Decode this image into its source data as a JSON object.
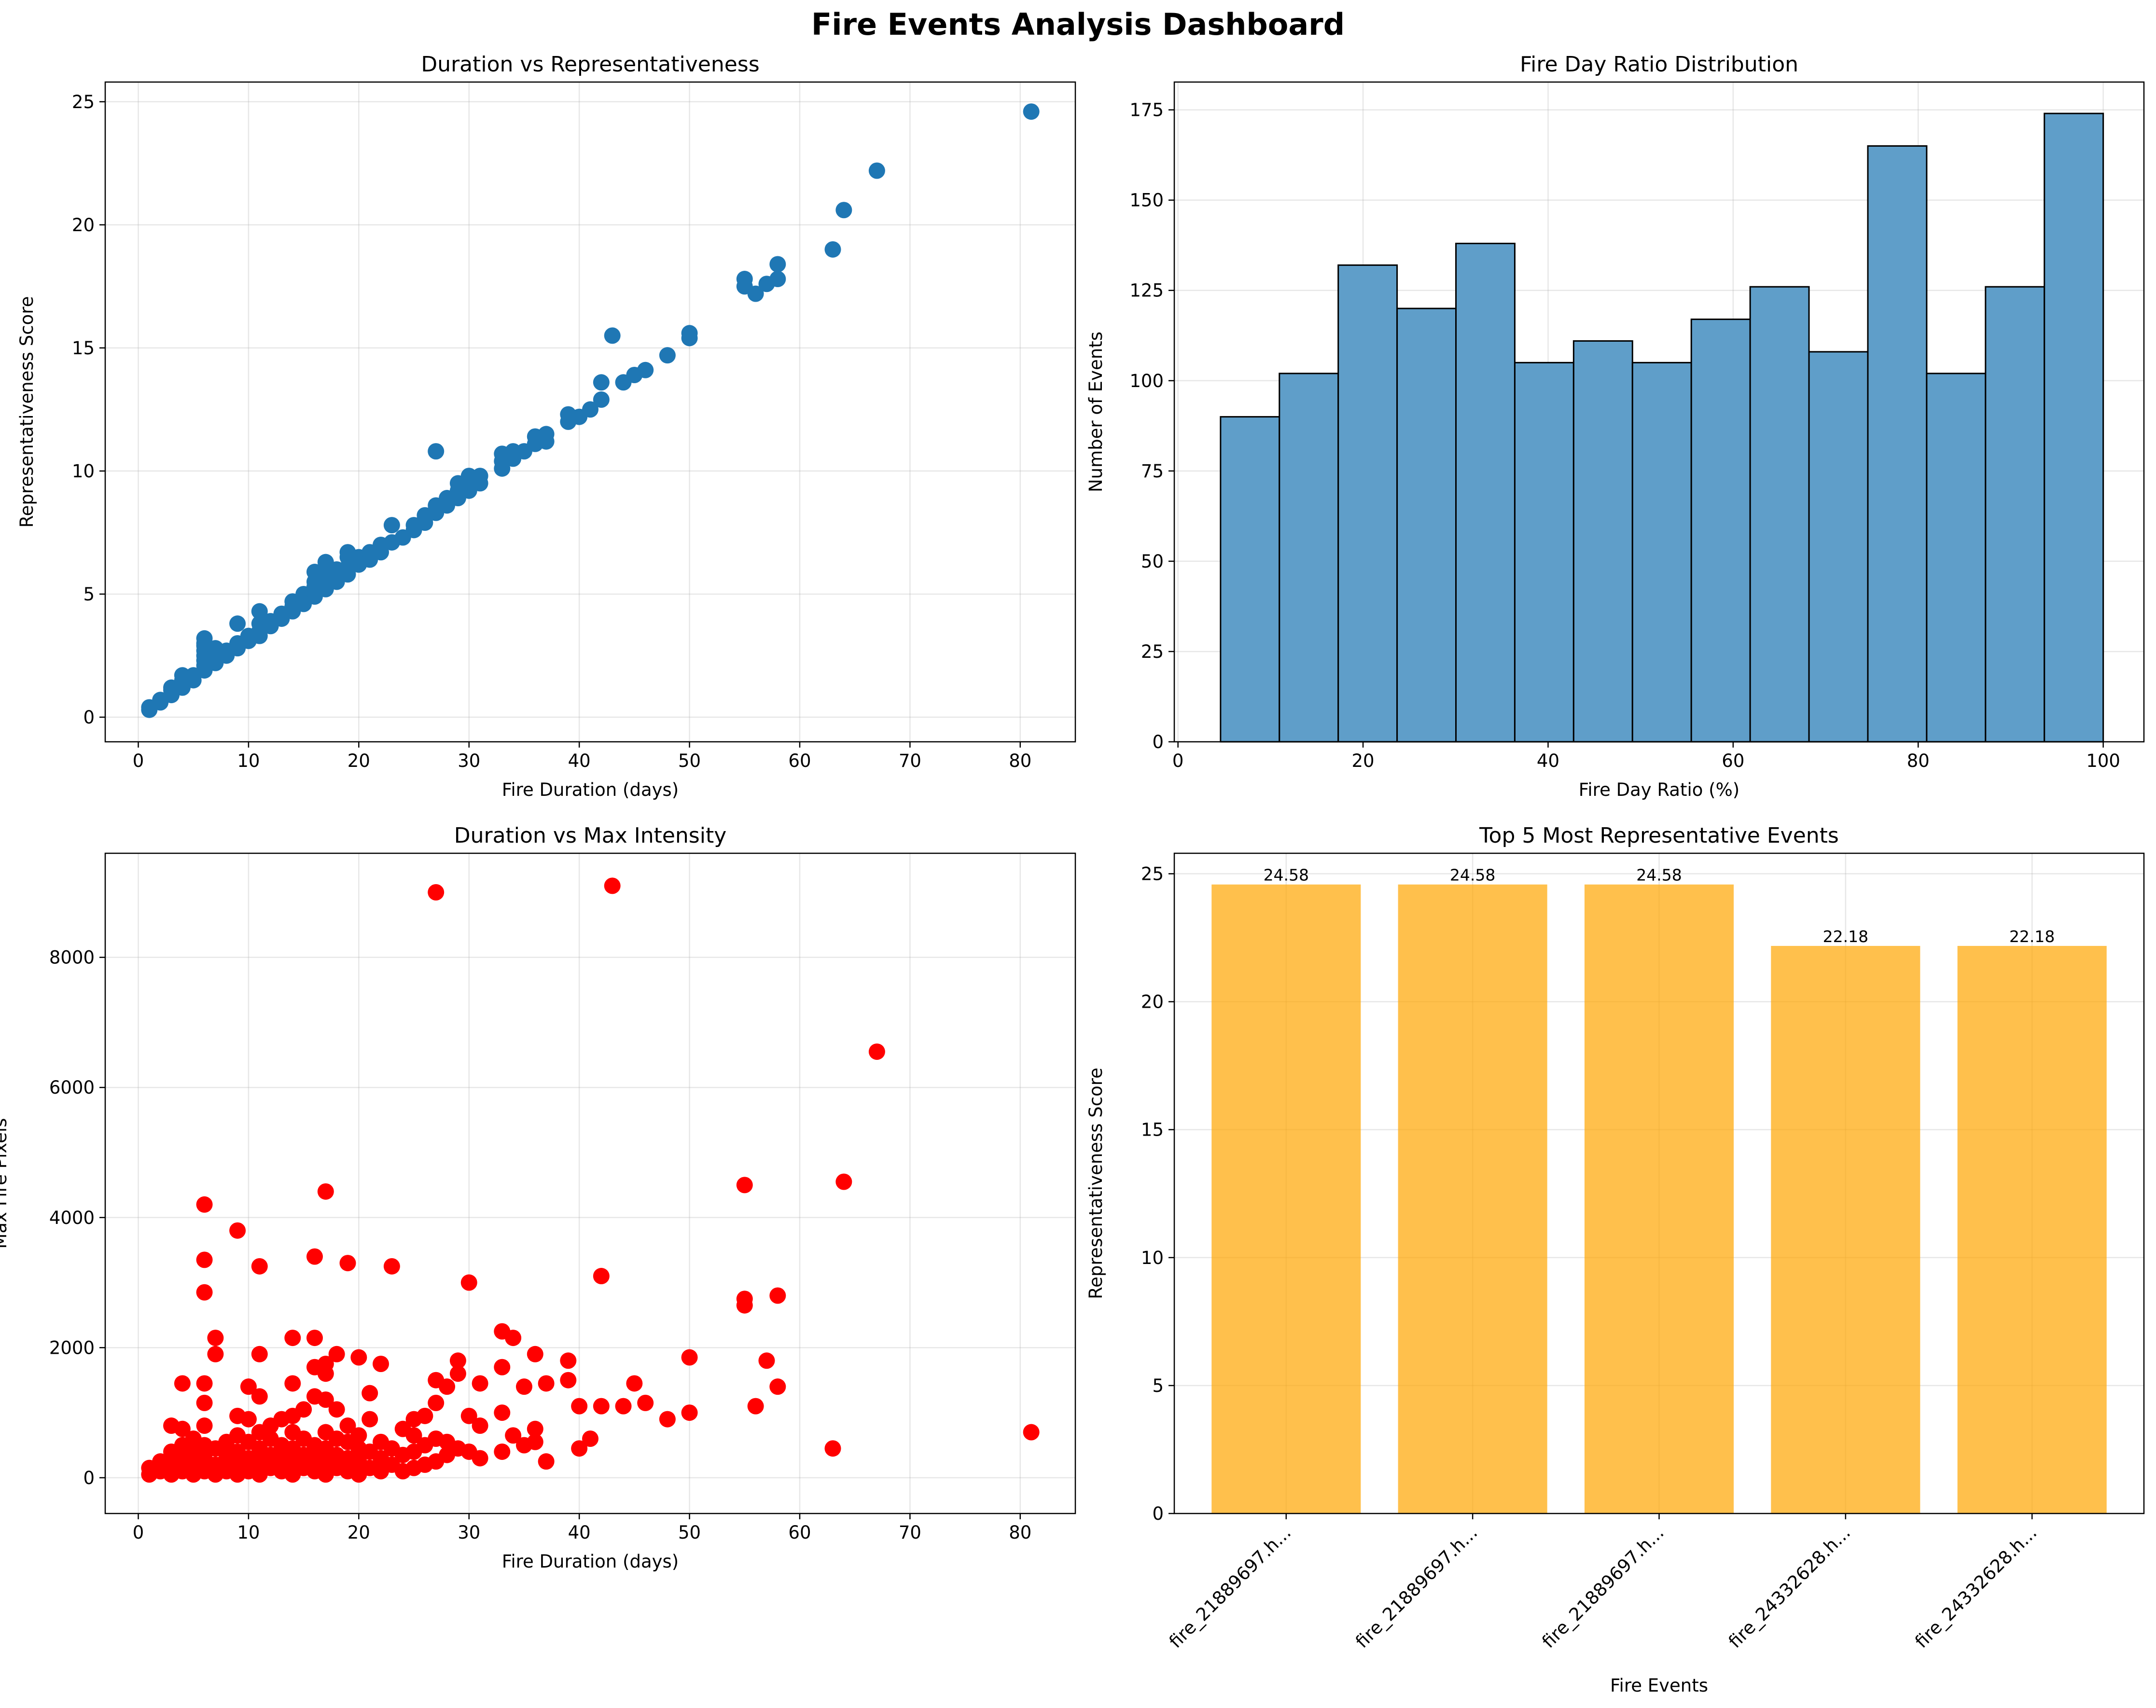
{
  "dashboard_title": "Fire Events Analysis Dashboard",
  "chart_data": [
    {
      "type": "scatter",
      "title": "Duration vs Representativeness",
      "xlabel": "Fire Duration (days)",
      "ylabel": "Representativeness Score",
      "xlim": [
        -3.0,
        85.0
      ],
      "ylim": [
        -1.0,
        25.8
      ],
      "xticks": [
        0,
        10,
        20,
        30,
        40,
        50,
        60,
        70,
        80
      ],
      "yticks": [
        0,
        5,
        10,
        15,
        20,
        25
      ],
      "grid": true,
      "color": "#1f77b4",
      "points": [
        [
          1,
          0.3
        ],
        [
          1,
          0.4
        ],
        [
          2,
          0.6
        ],
        [
          2,
          0.7
        ],
        [
          3,
          0.9
        ],
        [
          3,
          1.1
        ],
        [
          3,
          1.2
        ],
        [
          4,
          1.2
        ],
        [
          4,
          1.4
        ],
        [
          4,
          1.5
        ],
        [
          4,
          1.7
        ],
        [
          5,
          1.5
        ],
        [
          5,
          1.7
        ],
        [
          6,
          1.9
        ],
        [
          6,
          2.1
        ],
        [
          6,
          2.3
        ],
        [
          6,
          2.5
        ],
        [
          6,
          2.7
        ],
        [
          6,
          2.9
        ],
        [
          6,
          3.0
        ],
        [
          6,
          3.2
        ],
        [
          7,
          2.2
        ],
        [
          7,
          2.4
        ],
        [
          7,
          2.6
        ],
        [
          7,
          2.8
        ],
        [
          8,
          2.5
        ],
        [
          8,
          2.7
        ],
        [
          9,
          2.8
        ],
        [
          9,
          3.0
        ],
        [
          9,
          3.8
        ],
        [
          10,
          3.1
        ],
        [
          10,
          3.3
        ],
        [
          11,
          3.3
        ],
        [
          11,
          3.5
        ],
        [
          11,
          3.8
        ],
        [
          11,
          4.3
        ],
        [
          12,
          3.7
        ],
        [
          12,
          3.9
        ],
        [
          13,
          4.0
        ],
        [
          13,
          4.2
        ],
        [
          14,
          4.3
        ],
        [
          14,
          4.5
        ],
        [
          14,
          4.7
        ],
        [
          15,
          4.6
        ],
        [
          15,
          4.8
        ],
        [
          15,
          5.0
        ],
        [
          16,
          4.9
        ],
        [
          16,
          5.1
        ],
        [
          16,
          5.3
        ],
        [
          16,
          5.5
        ],
        [
          16,
          5.9
        ],
        [
          17,
          5.2
        ],
        [
          17,
          5.4
        ],
        [
          17,
          5.6
        ],
        [
          17,
          5.9
        ],
        [
          17,
          6.3
        ],
        [
          18,
          5.5
        ],
        [
          18,
          5.7
        ],
        [
          18,
          6.0
        ],
        [
          19,
          5.8
        ],
        [
          19,
          6.1
        ],
        [
          19,
          6.5
        ],
        [
          19,
          6.7
        ],
        [
          20,
          6.2
        ],
        [
          20,
          6.5
        ],
        [
          21,
          6.4
        ],
        [
          21,
          6.7
        ],
        [
          22,
          6.7
        ],
        [
          22,
          7.0
        ],
        [
          23,
          7.1
        ],
        [
          23,
          7.8
        ],
        [
          24,
          7.3
        ],
        [
          25,
          7.6
        ],
        [
          25,
          7.8
        ],
        [
          26,
          7.9
        ],
        [
          26,
          8.2
        ],
        [
          27,
          8.3
        ],
        [
          27,
          8.6
        ],
        [
          27,
          10.8
        ],
        [
          28,
          8.6
        ],
        [
          28,
          8.9
        ],
        [
          29,
          8.9
        ],
        [
          29,
          9.2
        ],
        [
          29,
          9.5
        ],
        [
          30,
          9.2
        ],
        [
          30,
          9.5
        ],
        [
          30,
          9.8
        ],
        [
          31,
          9.5
        ],
        [
          31,
          9.8
        ],
        [
          33,
          10.1
        ],
        [
          33,
          10.4
        ],
        [
          33,
          10.7
        ],
        [
          34,
          10.5
        ],
        [
          34,
          10.8
        ],
        [
          35,
          10.8
        ],
        [
          36,
          11.1
        ],
        [
          36,
          11.4
        ],
        [
          37,
          11.2
        ],
        [
          37,
          11.5
        ],
        [
          39,
          12.0
        ],
        [
          39,
          12.3
        ],
        [
          40,
          12.2
        ],
        [
          41,
          12.5
        ],
        [
          42,
          12.9
        ],
        [
          42,
          13.6
        ],
        [
          43,
          15.5
        ],
        [
          44,
          13.6
        ],
        [
          45,
          13.9
        ],
        [
          46,
          14.1
        ],
        [
          48,
          14.7
        ],
        [
          50,
          15.4
        ],
        [
          50,
          15.6
        ],
        [
          55,
          17.5
        ],
        [
          55,
          17.8
        ],
        [
          56,
          17.2
        ],
        [
          57,
          17.6
        ],
        [
          58,
          17.8
        ],
        [
          58,
          18.4
        ],
        [
          63,
          19.0
        ],
        [
          64,
          20.6
        ],
        [
          67,
          22.2
        ],
        [
          81,
          24.6
        ]
      ]
    },
    {
      "type": "bar",
      "title": "Fire Day Ratio Distribution",
      "xlabel": "Fire Day Ratio (%)",
      "ylabel": "Number of Events",
      "xlim": [
        -0.4,
        104.4
      ],
      "ylim": [
        0,
        182.7
      ],
      "xticks": [
        0,
        20,
        40,
        60,
        80,
        100
      ],
      "yticks": [
        0,
        25,
        50,
        75,
        100,
        125,
        150,
        175
      ],
      "grid": true,
      "color": "#5f9ec9",
      "bins": [
        4.6,
        10.96,
        17.32,
        23.68,
        30.04,
        36.4,
        42.76,
        49.12,
        55.48,
        61.84,
        68.2,
        74.56,
        80.92,
        87.28,
        93.64,
        100
      ],
      "counts": [
        90,
        102,
        132,
        120,
        138,
        105,
        111,
        105,
        117,
        126,
        108,
        165,
        102,
        126,
        174
      ]
    },
    {
      "type": "scatter",
      "title": "Duration vs Max Intensity",
      "xlabel": "Fire Duration (days)",
      "ylabel": "Max Fire Pixels",
      "xlim": [
        -3.0,
        85.0
      ],
      "ylim": [
        -550,
        9600
      ],
      "xticks": [
        0,
        10,
        20,
        30,
        40,
        50,
        60,
        70,
        80
      ],
      "yticks": [
        0,
        2000,
        4000,
        6000,
        8000
      ],
      "grid": true,
      "color": "#ff0000",
      "points": [
        [
          27,
          9000
        ],
        [
          43,
          9100
        ],
        [
          67,
          6550
        ],
        [
          17,
          4400
        ],
        [
          64,
          4550
        ],
        [
          55,
          4500
        ],
        [
          6,
          4200
        ],
        [
          9,
          3800
        ],
        [
          6,
          3350
        ],
        [
          11,
          3250
        ],
        [
          16,
          3400
        ],
        [
          19,
          3300
        ],
        [
          23,
          3250
        ],
        [
          6,
          2850
        ],
        [
          30,
          3000
        ],
        [
          42,
          3100
        ],
        [
          55,
          2750
        ],
        [
          55,
          2650
        ],
        [
          58,
          2800
        ],
        [
          33,
          2250
        ],
        [
          34,
          2150
        ],
        [
          7,
          2150
        ],
        [
          14,
          2150
        ],
        [
          16,
          2150
        ],
        [
          11,
          1900
        ],
        [
          18,
          1900
        ],
        [
          20,
          1850
        ],
        [
          36,
          1900
        ],
        [
          39,
          1800
        ],
        [
          50,
          1850
        ],
        [
          57,
          1800
        ],
        [
          29,
          1800
        ],
        [
          33,
          1700
        ],
        [
          16,
          1700
        ],
        [
          17,
          1750
        ],
        [
          22,
          1750
        ],
        [
          4,
          1450
        ],
        [
          6,
          1450
        ],
        [
          7,
          1900
        ],
        [
          10,
          1400
        ],
        [
          14,
          1450
        ],
        [
          17,
          1600
        ],
        [
          21,
          1300
        ],
        [
          27,
          1500
        ],
        [
          28,
          1400
        ],
        [
          29,
          1600
        ],
        [
          31,
          1450
        ],
        [
          35,
          1400
        ],
        [
          37,
          1450
        ],
        [
          39,
          1500
        ],
        [
          45,
          1450
        ],
        [
          46,
          1150
        ],
        [
          44,
          1100
        ],
        [
          42,
          1100
        ],
        [
          40,
          1100
        ],
        [
          58,
          1400
        ],
        [
          56,
          1100
        ],
        [
          50,
          1000
        ],
        [
          48,
          900
        ],
        [
          41,
          600
        ],
        [
          40,
          450
        ],
        [
          37,
          250
        ],
        [
          36,
          750
        ],
        [
          35,
          500
        ],
        [
          33,
          1000
        ],
        [
          31,
          800
        ],
        [
          30,
          950
        ],
        [
          63,
          450
        ],
        [
          81,
          700
        ],
        [
          3,
          800
        ],
        [
          4,
          750
        ],
        [
          5,
          600
        ],
        [
          6,
          1150
        ],
        [
          6,
          800
        ],
        [
          8,
          550
        ],
        [
          9,
          950
        ],
        [
          10,
          900
        ],
        [
          11,
          1250
        ],
        [
          12,
          800
        ],
        [
          13,
          900
        ],
        [
          14,
          950
        ],
        [
          15,
          1050
        ],
        [
          16,
          1250
        ],
        [
          17,
          1200
        ],
        [
          18,
          1050
        ],
        [
          19,
          800
        ],
        [
          21,
          900
        ],
        [
          22,
          550
        ],
        [
          24,
          750
        ],
        [
          25,
          900
        ],
        [
          26,
          950
        ],
        [
          27,
          1150
        ],
        [
          1,
          50
        ],
        [
          1,
          150
        ],
        [
          2,
          100
        ],
        [
          2,
          250
        ],
        [
          3,
          50
        ],
        [
          3,
          200
        ],
        [
          3,
          400
        ],
        [
          4,
          100
        ],
        [
          4,
          300
        ],
        [
          4,
          500
        ],
        [
          5,
          50
        ],
        [
          5,
          250
        ],
        [
          5,
          400
        ],
        [
          6,
          100
        ],
        [
          6,
          300
        ],
        [
          6,
          500
        ],
        [
          7,
          50
        ],
        [
          7,
          200
        ],
        [
          7,
          450
        ],
        [
          8,
          100
        ],
        [
          8,
          300
        ],
        [
          8,
          450
        ],
        [
          9,
          50
        ],
        [
          9,
          200
        ],
        [
          9,
          400
        ],
        [
          9,
          650
        ],
        [
          10,
          100
        ],
        [
          10,
          300
        ],
        [
          10,
          550
        ],
        [
          11,
          50
        ],
        [
          11,
          250
        ],
        [
          11,
          450
        ],
        [
          11,
          700
        ],
        [
          12,
          150
        ],
        [
          12,
          350
        ],
        [
          12,
          600
        ],
        [
          13,
          100
        ],
        [
          13,
          300
        ],
        [
          13,
          500
        ],
        [
          14,
          50
        ],
        [
          14,
          250
        ],
        [
          14,
          450
        ],
        [
          14,
          700
        ],
        [
          15,
          150
        ],
        [
          15,
          350
        ],
        [
          15,
          600
        ],
        [
          16,
          100
        ],
        [
          16,
          300
        ],
        [
          16,
          500
        ],
        [
          17,
          50
        ],
        [
          17,
          250
        ],
        [
          17,
          450
        ],
        [
          17,
          700
        ],
        [
          18,
          150
        ],
        [
          18,
          350
        ],
        [
          18,
          600
        ],
        [
          19,
          100
        ],
        [
          19,
          300
        ],
        [
          19,
          550
        ],
        [
          20,
          50
        ],
        [
          20,
          250
        ],
        [
          20,
          450
        ],
        [
          20,
          650
        ],
        [
          21,
          150
        ],
        [
          21,
          400
        ],
        [
          22,
          100
        ],
        [
          22,
          300
        ],
        [
          23,
          200
        ],
        [
          23,
          450
        ],
        [
          24,
          100
        ],
        [
          24,
          350
        ],
        [
          25,
          150
        ],
        [
          25,
          400
        ],
        [
          25,
          650
        ],
        [
          26,
          200
        ],
        [
          26,
          500
        ],
        [
          27,
          250
        ],
        [
          27,
          600
        ],
        [
          28,
          350
        ],
        [
          28,
          550
        ],
        [
          29,
          450
        ],
        [
          30,
          400
        ],
        [
          31,
          300
        ],
        [
          33,
          400
        ],
        [
          34,
          650
        ],
        [
          36,
          550
        ]
      ]
    },
    {
      "type": "bar",
      "title": "Top 5 Most Representative Events",
      "xlabel": "Fire Events",
      "ylabel": "Representativeness Score",
      "ylim": [
        0,
        25.8
      ],
      "yticks": [
        0,
        5,
        10,
        15,
        20,
        25
      ],
      "grid": true,
      "color": "#ffa500",
      "categories": [
        "fire_21889697.h...",
        "fire_21889697.h...",
        "fire_21889697.h...",
        "fire_24332628.h...",
        "fire_24332628.h..."
      ],
      "values": [
        24.58,
        24.58,
        24.58,
        22.18,
        22.18
      ],
      "data_labels": [
        "24.58",
        "24.58",
        "24.58",
        "22.18",
        "22.18"
      ]
    }
  ]
}
